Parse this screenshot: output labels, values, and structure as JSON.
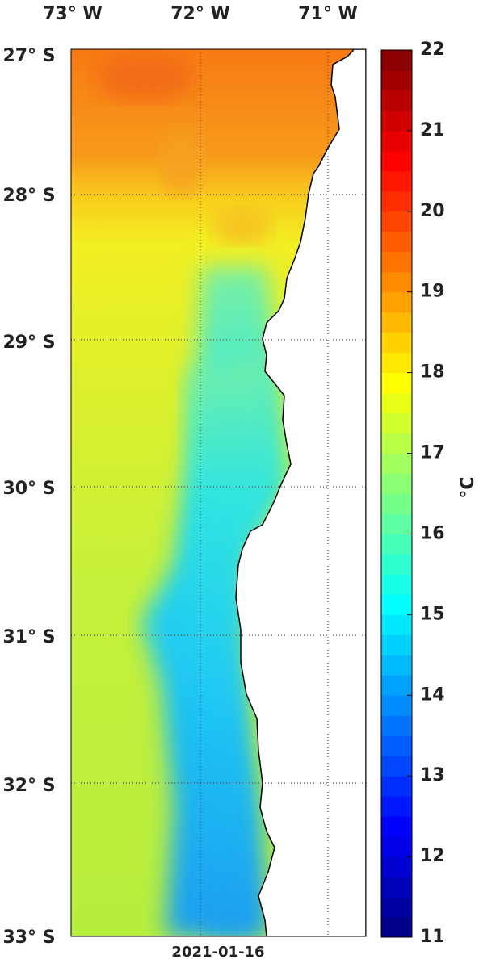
{
  "map": {
    "lon_labels": [
      "73° W",
      "72° W",
      "71° W"
    ],
    "lat_labels": [
      "27° S",
      "28° S",
      "29° S",
      "30° S",
      "31° S",
      "32° S",
      "33° S"
    ],
    "date": "2021-01-16",
    "colorbar": {
      "label": "°C",
      "lim": [
        11,
        22
      ],
      "ticks": [
        11,
        12,
        13,
        14,
        15,
        16,
        17,
        18,
        19,
        20,
        21,
        22
      ]
    }
  }
}
